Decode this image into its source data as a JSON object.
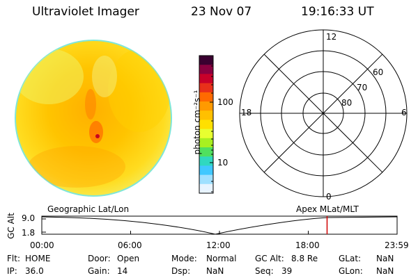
{
  "header": {
    "instrument": "Ultraviolet Imager",
    "date": "23 Nov 07",
    "time": "19:16:33 UT"
  },
  "colorbar": {
    "unit_label": "photon cm⁻²s⁻¹",
    "tick_100": "100",
    "tick_10": "10",
    "colors": [
      "#3a0030",
      "#8a0040",
      "#c8002a",
      "#e8301a",
      "#ff6a00",
      "#ff9a00",
      "#ffc000",
      "#ffe000",
      "#e8ff30",
      "#a8f020",
      "#50e060",
      "#30d8c0",
      "#40c8ff",
      "#a0e0ff",
      "#e8f4ff"
    ]
  },
  "polar_plot": {
    "lat_labels": [
      "60",
      "70",
      "80"
    ],
    "mlt_labels": {
      "top": "12",
      "left": "18",
      "right": "6",
      "bottom": "0"
    }
  },
  "altitude_plot": {
    "left_caption": "Geographic Lat/Lon",
    "right_caption": "Apex MLat/MLT",
    "ylabel": "GC Alt",
    "y_ticks": [
      "9.0",
      "1.8"
    ],
    "x_ticks": [
      "00:00",
      "06:00",
      "12:00",
      "18:00",
      "23:59"
    ],
    "current_time_hours": 19.27,
    "marker_color": "#d00000"
  },
  "status": {
    "flt_label": "Flt:",
    "flt_value": "HOME",
    "ip_label": "IP:",
    "ip_value": "36.0",
    "door_label": "Door:",
    "door_value": "Open",
    "gain_label": "Gain:",
    "gain_value": "14",
    "mode_label": "Mode:",
    "mode_value": "Normal",
    "dsp_label": "Dsp:",
    "dsp_value": "NaN",
    "gcalt_label": "GC Alt:",
    "gcalt_value": "8.8 Re",
    "seq_label": "Seq:",
    "seq_value": "39",
    "glat_label": "GLat:",
    "glat_value": "NaN",
    "glon_label": "GLon:",
    "glon_value": "NaN"
  }
}
